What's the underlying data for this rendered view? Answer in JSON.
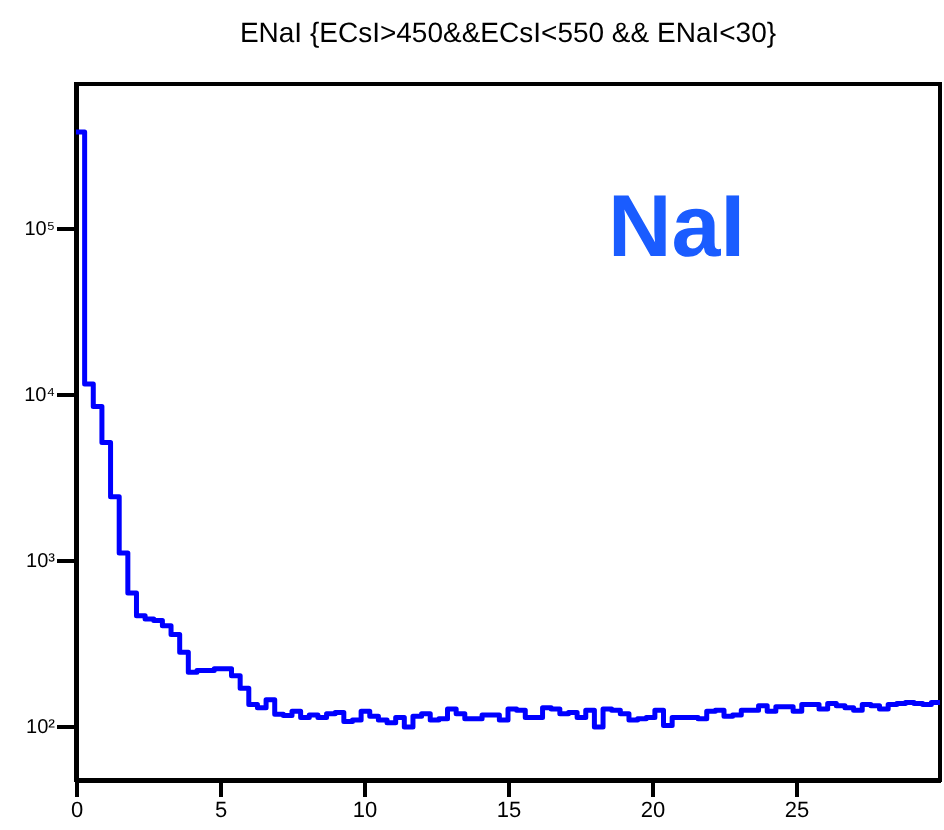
{
  "chart_data": {
    "type": "histogram",
    "title": "ENaI {ECsI>450&&ECsI<550 && ENaI<30}",
    "annotations": [
      "NaI"
    ],
    "bins": [
      0,
      0.3,
      0.6,
      0.9,
      1.2,
      1.5,
      1.8,
      2.1,
      2.4,
      2.7,
      3,
      3.3,
      3.6,
      3.9,
      4.2,
      4.5,
      4.8,
      5.1,
      5.4,
      5.7,
      6,
      6.3,
      6.6,
      6.9,
      7.2,
      7.5,
      7.8,
      8.1,
      8.4,
      8.7,
      9,
      9.3,
      9.6,
      9.9,
      10.2,
      10.5,
      10.8,
      11.1,
      11.4,
      11.7,
      12,
      12.3,
      12.6,
      12.9,
      13.2,
      13.5,
      13.8,
      14.1,
      14.4,
      14.7,
      15,
      15.3,
      15.6,
      15.9,
      16.2,
      16.5,
      16.8,
      17.1,
      17.4,
      17.7,
      18,
      18.3,
      18.6,
      18.9,
      19.2,
      19.5,
      19.8,
      20.1,
      20.4,
      20.7,
      21,
      21.3,
      21.6,
      21.9,
      22.2,
      22.5,
      22.8,
      23.1,
      23.4,
      23.7,
      24,
      24.3,
      24.6,
      24.9,
      25.2,
      25.5,
      25.8,
      26.1,
      26.4,
      26.7,
      27,
      27.3,
      27.6,
      27.9,
      28.2,
      28.5,
      28.8,
      29.1,
      29.4,
      29.7,
      30
    ],
    "values": [
      380000,
      11500,
      8400,
      5100,
      2400,
      1100,
      630,
      460,
      440,
      430,
      400,
      355,
      277,
      210,
      215,
      215,
      220,
      220,
      200,
      168,
      134,
      128,
      143,
      117,
      115,
      122,
      112,
      116,
      112,
      118,
      120,
      106,
      108,
      122,
      114,
      108,
      104,
      112,
      98,
      114,
      118,
      108,
      110,
      126,
      118,
      110,
      110,
      116,
      116,
      108,
      126,
      124,
      112,
      112,
      128,
      126,
      118,
      120,
      112,
      124,
      98,
      126,
      124,
      118,
      108,
      110,
      112,
      124,
      100,
      112,
      112,
      112,
      110,
      122,
      124,
      114,
      116,
      124,
      124,
      132,
      122,
      130,
      130,
      122,
      134,
      134,
      126,
      136,
      132,
      128,
      124,
      134,
      132,
      126,
      134,
      136,
      138,
      136,
      134,
      138
    ],
    "color": "#0000ff",
    "log": "y",
    "xlim": [
      0,
      30
    ],
    "xticks": [
      0,
      5,
      10,
      15,
      20,
      25
    ],
    "ylim": [
      47,
      740000
    ],
    "yticks": [
      {
        "value": 100,
        "label": "10²"
      },
      {
        "value": 1000,
        "label": "10³"
      },
      {
        "value": 10000,
        "label": "10⁴"
      },
      {
        "value": 100000,
        "label": "10⁵"
      }
    ]
  }
}
